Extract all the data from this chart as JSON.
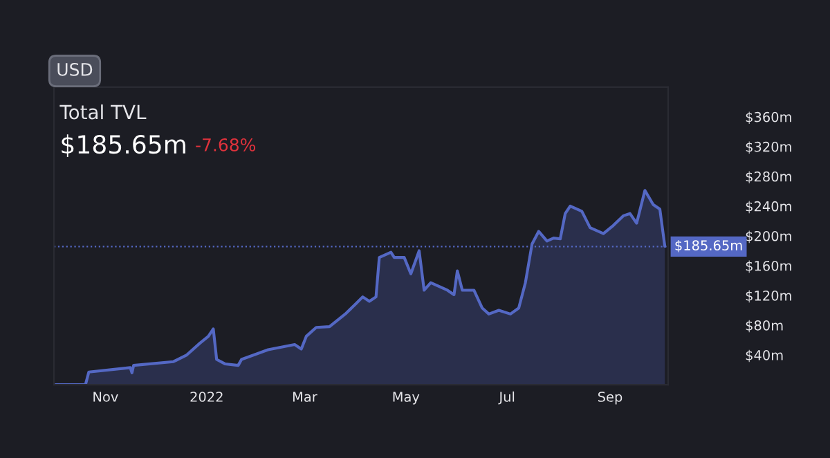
{
  "chart_data": {
    "type": "area",
    "title": "Total TVL",
    "subtitle": "$185.65m",
    "annotations": [
      "USD",
      "-7.68%"
    ],
    "x": [
      "2021-10-02",
      "2021-10-20",
      "2021-10-22",
      "2021-11-16",
      "2021-11-17",
      "2021-11-18",
      "2021-12-12",
      "2021-12-20",
      "2021-12-28",
      "2022-01-02",
      "2022-01-05",
      "2022-01-07",
      "2022-01-12",
      "2022-01-20",
      "2022-01-22",
      "2022-02-07",
      "2022-02-23",
      "2022-02-27",
      "2022-03-02",
      "2022-03-08",
      "2022-03-16",
      "2022-03-26",
      "2022-04-01",
      "2022-04-05",
      "2022-04-09",
      "2022-04-13",
      "2022-04-15",
      "2022-04-22",
      "2022-04-24",
      "2022-04-30",
      "2022-05-04",
      "2022-05-09",
      "2022-05-12",
      "2022-05-16",
      "2022-05-26",
      "2022-05-30",
      "2022-06-01",
      "2022-06-04",
      "2022-06-11",
      "2022-06-16",
      "2022-06-20",
      "2022-06-26",
      "2022-07-03",
      "2022-07-08",
      "2022-07-12",
      "2022-07-16",
      "2022-07-20",
      "2022-07-25",
      "2022-07-29",
      "2022-08-02",
      "2022-08-05",
      "2022-08-08",
      "2022-08-15",
      "2022-08-20",
      "2022-08-28",
      "2022-09-03",
      "2022-09-09",
      "2022-09-13",
      "2022-09-17",
      "2022-09-22",
      "2022-09-27",
      "2022-10-01",
      "2022-10-04"
    ],
    "series": [
      {
        "color": "#5468c4",
        "values": [
          0,
          0,
          17,
          23,
          16,
          26,
          31,
          40,
          56,
          65,
          75,
          34,
          28,
          26,
          34,
          47,
          54,
          48,
          65,
          77,
          78,
          96,
          109,
          118,
          112,
          118,
          171,
          178,
          171,
          171,
          149,
          180,
          127,
          137,
          127,
          121,
          153,
          127,
          127,
          103,
          95,
          100,
          95,
          103,
          137,
          189,
          206,
          193,
          197,
          196,
          230,
          240,
          233,
          211,
          203,
          214,
          227,
          230,
          217,
          261,
          242,
          236,
          186
        ]
      }
    ],
    "xlim": [
      "2021-10-01",
      "2022-10-06"
    ],
    "xticks": [
      {
        "value": "2021-11-01",
        "label": "Nov"
      },
      {
        "value": "2022-01-01",
        "label": "2022"
      },
      {
        "value": "2022-03-01",
        "label": "Mar"
      },
      {
        "value": "2022-05-01",
        "label": "May"
      },
      {
        "value": "2022-07-01",
        "label": "Jul"
      },
      {
        "value": "2022-09-01",
        "label": "Sep"
      }
    ],
    "ylim": [
      0,
      400
    ],
    "yticks": [
      {
        "value": 40,
        "label": "$40m"
      },
      {
        "value": 80,
        "label": "$80m"
      },
      {
        "value": 120,
        "label": "$120m"
      },
      {
        "value": 160,
        "label": "$160m"
      },
      {
        "value": 200,
        "label": "$200m"
      },
      {
        "value": 240,
        "label": "$240m"
      },
      {
        "value": 280,
        "label": "$280m"
      },
      {
        "value": 320,
        "label": "$320m"
      },
      {
        "value": 360,
        "label": "$360m"
      }
    ],
    "ref_lines": [
      {
        "axis": "y",
        "value": 185.65,
        "label": "$185.65m",
        "color": "#5468c4",
        "line_style": "dotted"
      }
    ],
    "grid": false
  }
}
